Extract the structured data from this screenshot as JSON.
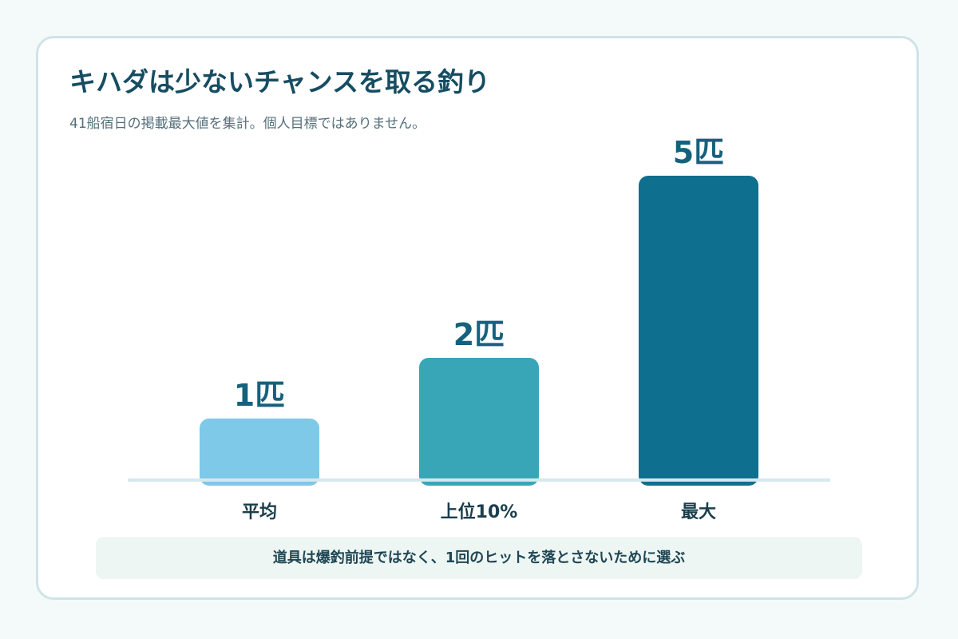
{
  "header": {
    "title": "キハダは少ないチャンスを取る釣り",
    "subtitle": "41船宿日の掲載最大値を集計。個人目標ではありません。"
  },
  "footnote": "道具は爆釣前提ではなく、1回のヒットを落とさないために選ぶ",
  "colors": {
    "background": "#f4faf9",
    "card_border": "#cfe3e9",
    "title": "#164d62",
    "value_label": "#15617d",
    "baseline": "#d6e8ee",
    "footnote_bg": "#edf6f2"
  },
  "chart_data": {
    "type": "bar",
    "categories": [
      "平均",
      "上位10%",
      "最大"
    ],
    "values": [
      1,
      2,
      5
    ],
    "value_labels": [
      "1匹",
      "2匹",
      "5匹"
    ],
    "bar_colors": [
      "#7ec8e8",
      "#39a6b8",
      "#0f6f8e"
    ],
    "ylim": [
      0,
      5
    ],
    "grid": false,
    "legend": "none"
  }
}
